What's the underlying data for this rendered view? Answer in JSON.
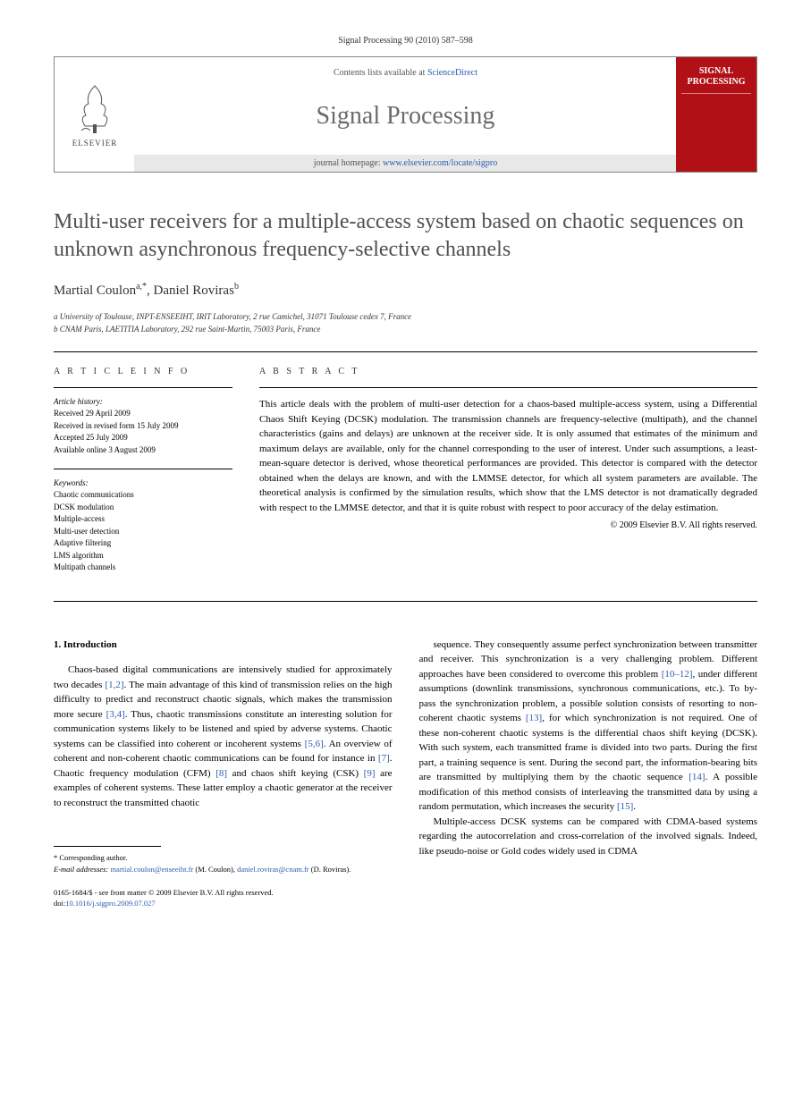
{
  "header": {
    "citation": "Signal Processing 90 (2010) 587–598",
    "contents_prefix": "Contents lists available at ",
    "contents_link": "ScienceDirect",
    "journal_name": "Signal Processing",
    "homepage_prefix": "journal homepage: ",
    "homepage_url": "www.elsevier.com/locate/sigpro",
    "publisher_label": "ELSEVIER",
    "cover_title": "SIGNAL PROCESSING"
  },
  "article": {
    "title": "Multi-user receivers for a multiple-access system based on chaotic sequences on unknown asynchronous frequency-selective channels",
    "authors_html": "Martial Coulon",
    "author1": "Martial Coulon",
    "author1_sup": "a,*",
    "author2": "Daniel Roviras",
    "author2_sup": "b",
    "affiliations": {
      "a": "a University of Toulouse, INPT-ENSEEIHT, IRIT Laboratory, 2 rue Camichel, 31071 Toulouse cedex 7, France",
      "b": "b CNAM Paris, LAETITIA Laboratory, 292 rue Saint-Martin, 75003 Paris, France"
    }
  },
  "info": {
    "heading": "A R T I C L E   I N F O",
    "history_label": "Article history:",
    "history": {
      "received": "Received 29 April 2009",
      "revised": "Received in revised form 15 July 2009",
      "accepted": "Accepted 25 July 2009",
      "online": "Available online 3 August 2009"
    },
    "keywords_label": "Keywords:",
    "keywords": [
      "Chaotic communications",
      "DCSK modulation",
      "Multiple-access",
      "Multi-user detection",
      "Adaptive filtering",
      "LMS algorithm",
      "Multipath channels"
    ]
  },
  "abstract": {
    "heading": "A B S T R A C T",
    "text": "This article deals with the problem of multi-user detection for a chaos-based multiple-access system, using a Differential Chaos Shift Keying (DCSK) modulation. The transmission channels are frequency-selective (multipath), and the channel characteristics (gains and delays) are unknown at the receiver side. It is only assumed that estimates of the minimum and maximum delays are available, only for the channel corresponding to the user of interest. Under such assumptions, a least-mean-square detector is derived, whose theoretical performances are provided. This detector is compared with the detector obtained when the delays are known, and with the LMMSE detector, for which all system parameters are available. The theoretical analysis is confirmed by the simulation results, which show that the LMS detector is not dramatically degraded with respect to the LMMSE detector, and that it is quite robust with respect to poor accuracy of the delay estimation.",
    "copyright": "© 2009 Elsevier B.V. All rights reserved."
  },
  "body": {
    "section1_heading": "1. Introduction",
    "col1_p1": "Chaos-based digital communications are intensively studied for approximately two decades [1,2]. The main advantage of this kind of transmission relies on the high difficulty to predict and reconstruct chaotic signals, which makes the transmission more secure [3,4]. Thus, chaotic transmissions constitute an interesting solution for communication systems likely to be listened and spied by adverse systems. Chaotic systems can be classified into coherent or incoherent systems [5,6]. An overview of coherent and non-coherent chaotic communications can be found for instance in [7]. Chaotic frequency modulation (CFM) [8] and chaos shift keying (CSK) [9] are examples of coherent systems. These latter employ a chaotic generator at the receiver to reconstruct the transmitted chaotic",
    "col2_p1": "sequence. They consequently assume perfect synchronization between transmitter and receiver. This synchronization is a very challenging problem. Different approaches have been considered to overcome this problem [10–12], under different assumptions (downlink transmissions, synchronous communications, etc.). To by-pass the synchronization problem, a possible solution consists of resorting to non-coherent chaotic systems [13], for which synchronization is not required. One of these non-coherent chaotic systems is the differential chaos shift keying (DCSK). With such system, each transmitted frame is divided into two parts. During the first part, a training sequence is sent. During the second part, the information-bearing bits are transmitted by multiplying them by the chaotic sequence [14]. A possible modification of this method consists of interleaving the transmitted data by using a random permutation, which increases the security [15].",
    "col2_p2": "Multiple-access DCSK systems can be compared with CDMA-based systems regarding the autocorrelation and cross-correlation of the involved signals. Indeed, like pseudo-noise or Gold codes widely used in CDMA"
  },
  "footnotes": {
    "corresponding": "* Corresponding author.",
    "email_label": "E-mail addresses: ",
    "email1": "martial.coulon@enseeiht.fr",
    "email1_name": " (M. Coulon), ",
    "email2": "daniel.roviras@cnam.fr",
    "email2_name": " (D. Roviras)."
  },
  "footer": {
    "line1": "0165-1684/$ - see front matter © 2009 Elsevier B.V. All rights reserved.",
    "doi_label": "doi:",
    "doi": "10.1016/j.sigpro.2009.07.027"
  },
  "colors": {
    "link": "#2a5db0",
    "cover_bg": "#b11116",
    "title_gray": "#505050"
  }
}
